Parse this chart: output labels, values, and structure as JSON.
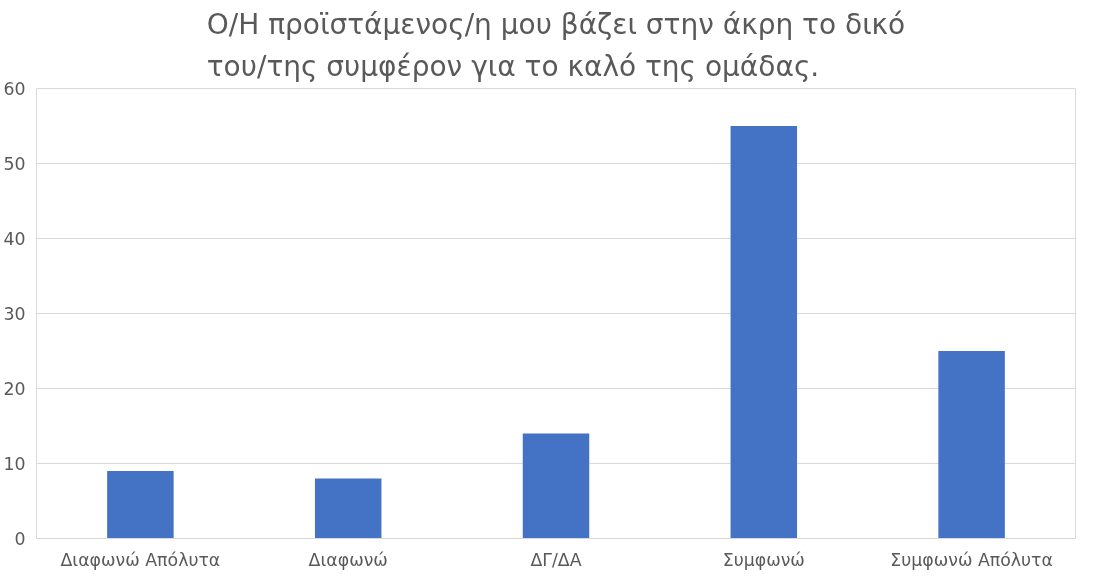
{
  "chart_data": {
    "type": "bar",
    "title": "Ο/Η προϊστάμενος/η μου βάζει στην άκρη το δικό του/της συμφέρον για το καλό της ομάδας.",
    "categories": [
      "Διαφωνώ Απόλυτα",
      "Διαφωνώ",
      "ΔΓ/ΔΑ",
      "Συμφωνώ",
      "Συμφωνώ Απόλυτα"
    ],
    "values": [
      9,
      8,
      14,
      55,
      25
    ],
    "color": "#4472c4",
    "ylim": [
      0,
      60
    ],
    "yticks": [
      0,
      10,
      20,
      30,
      40,
      50,
      60
    ],
    "grid": "y"
  }
}
